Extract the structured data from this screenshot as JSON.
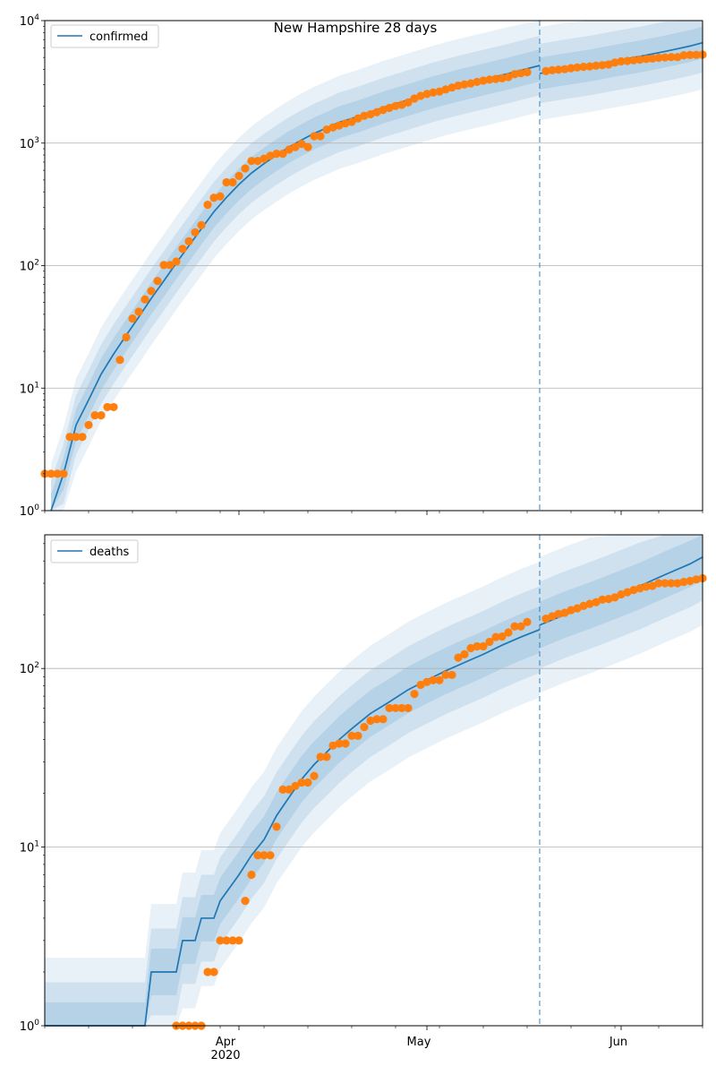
{
  "figure": {
    "title": "New Hampshire 28 days"
  },
  "colors": {
    "line": "#1f77b4",
    "dots": "#ff7f0e",
    "band": "#1f77b4",
    "grid": "#b0b0b0",
    "cutoff": "#1f77b4"
  },
  "chart_data": [
    {
      "type": "line",
      "name": "confirmed-panel",
      "yscale": "log",
      "ylim": [
        1,
        10000
      ],
      "ytick_labels": [
        "10^0",
        "10^1",
        "10^2",
        "10^3",
        "10^4"
      ],
      "grid": "horizontal",
      "legend": {
        "position": "top-left",
        "entries": [
          "confirmed"
        ]
      },
      "cutoff_date": "2020-05-19",
      "series": [
        {
          "name": "confirmed",
          "kind": "model",
          "x": [
            "2020-03-02",
            "2020-03-04",
            "2020-03-06",
            "2020-03-08",
            "2020-03-10",
            "2020-03-12",
            "2020-03-14",
            "2020-03-16",
            "2020-03-18",
            "2020-03-20",
            "2020-03-22",
            "2020-03-24",
            "2020-03-26",
            "2020-03-28",
            "2020-03-30",
            "2020-04-01",
            "2020-04-03",
            "2020-04-05",
            "2020-04-07",
            "2020-04-09",
            "2020-04-11",
            "2020-04-13",
            "2020-04-15",
            "2020-04-17",
            "2020-04-20",
            "2020-04-24",
            "2020-04-28",
            "2020-05-02",
            "2020-05-06",
            "2020-05-10",
            "2020-05-14",
            "2020-05-19",
            "2020-05-19",
            "2020-05-23",
            "2020-05-27",
            "2020-05-31",
            "2020-06-04",
            "2020-06-08",
            "2020-06-12",
            "2020-06-14"
          ],
          "values": [
            1,
            2,
            5,
            8,
            13,
            19,
            27,
            38,
            54,
            75,
            105,
            145,
            200,
            275,
            360,
            460,
            570,
            680,
            800,
            930,
            1060,
            1200,
            1330,
            1480,
            1650,
            1950,
            2250,
            2600,
            2950,
            3300,
            3700,
            4300,
            3700,
            4000,
            4300,
            4700,
            5100,
            5600,
            6200,
            6600
          ]
        },
        {
          "name": "confirmed",
          "kind": "observed",
          "x": [
            "2020-03-01",
            "2020-03-02",
            "2020-03-03",
            "2020-03-04",
            "2020-03-05",
            "2020-03-06",
            "2020-03-07",
            "2020-03-08",
            "2020-03-09",
            "2020-03-10",
            "2020-03-11",
            "2020-03-12",
            "2020-03-13",
            "2020-03-14",
            "2020-03-15",
            "2020-03-16",
            "2020-03-17",
            "2020-03-18",
            "2020-03-19",
            "2020-03-20",
            "2020-03-21",
            "2020-03-22",
            "2020-03-23",
            "2020-03-24",
            "2020-03-25",
            "2020-03-26",
            "2020-03-27",
            "2020-03-28",
            "2020-03-29",
            "2020-03-30",
            "2020-03-31",
            "2020-04-01",
            "2020-04-02",
            "2020-04-03",
            "2020-04-04",
            "2020-04-05",
            "2020-04-06",
            "2020-04-07",
            "2020-04-08",
            "2020-04-09",
            "2020-04-10",
            "2020-04-11",
            "2020-04-12",
            "2020-04-13",
            "2020-04-14",
            "2020-04-15",
            "2020-04-16",
            "2020-04-17",
            "2020-04-18",
            "2020-04-19",
            "2020-04-20",
            "2020-04-21",
            "2020-04-22",
            "2020-04-23",
            "2020-04-24",
            "2020-04-25",
            "2020-04-26",
            "2020-04-27",
            "2020-04-28",
            "2020-04-29",
            "2020-04-30",
            "2020-05-01",
            "2020-05-02",
            "2020-05-03",
            "2020-05-04",
            "2020-05-05",
            "2020-05-06",
            "2020-05-07",
            "2020-05-08",
            "2020-05-09",
            "2020-05-10",
            "2020-05-11",
            "2020-05-12",
            "2020-05-13",
            "2020-05-14",
            "2020-05-15",
            "2020-05-16",
            "2020-05-17",
            "2020-05-20",
            "2020-05-21",
            "2020-05-22",
            "2020-05-23",
            "2020-05-24",
            "2020-05-25",
            "2020-05-26",
            "2020-05-27",
            "2020-05-28",
            "2020-05-29",
            "2020-05-30",
            "2020-05-31",
            "2020-06-01",
            "2020-06-02",
            "2020-06-03",
            "2020-06-04",
            "2020-06-05",
            "2020-06-06",
            "2020-06-07",
            "2020-06-08",
            "2020-06-09",
            "2020-06-10",
            "2020-06-11",
            "2020-06-12",
            "2020-06-13",
            "2020-06-14"
          ],
          "values": [
            2,
            2,
            2,
            2,
            4,
            4,
            4,
            5,
            6,
            6,
            7,
            7,
            17,
            26,
            37,
            42,
            53,
            62,
            75,
            101,
            101,
            108,
            137,
            158,
            187,
            214,
            314,
            358,
            367,
            479,
            479,
            540,
            621,
            715,
            715,
            747,
            788,
            819,
            819,
            885,
            929,
            985,
            929,
            1139,
            1139,
            1287,
            1342,
            1392,
            1447,
            1491,
            1588,
            1670,
            1720,
            1787,
            1864,
            1938,
            2010,
            2054,
            2146,
            2310,
            2429,
            2518,
            2588,
            2636,
            2740,
            2843,
            2947,
            3011,
            3071,
            3160,
            3239,
            3299,
            3342,
            3383,
            3463,
            3652,
            3721,
            3793,
            3868,
            3935,
            3980,
            4014,
            4089,
            4145,
            4197,
            4231,
            4286,
            4331,
            4386,
            4545,
            4651,
            4685,
            4749,
            4795,
            4854,
            4904,
            4969,
            5010,
            5040,
            5040,
            5208,
            5242,
            5251,
            5278
          ]
        }
      ]
    },
    {
      "type": "line",
      "name": "deaths-panel",
      "yscale": "log",
      "ylim": [
        1,
        560
      ],
      "ytick_labels": [
        "10^0",
        "10^1",
        "10^2"
      ],
      "grid": "horizontal",
      "legend": {
        "position": "top-left",
        "entries": [
          "deaths"
        ]
      },
      "cutoff_date": "2020-05-19",
      "xtick_labels": [
        "Apr",
        "May",
        "Jun"
      ],
      "xtick_year": "2020",
      "series": [
        {
          "name": "deaths",
          "kind": "model",
          "x": [
            "2020-03-01",
            "2020-03-17",
            "2020-03-18",
            "2020-03-22",
            "2020-03-23",
            "2020-03-25",
            "2020-03-26",
            "2020-03-28",
            "2020-03-29",
            "2020-04-01",
            "2020-04-03",
            "2020-04-05",
            "2020-04-07",
            "2020-04-09",
            "2020-04-11",
            "2020-04-13",
            "2020-04-15",
            "2020-04-17",
            "2020-04-19",
            "2020-04-22",
            "2020-04-25",
            "2020-04-28",
            "2020-05-01",
            "2020-05-04",
            "2020-05-07",
            "2020-05-10",
            "2020-05-13",
            "2020-05-16",
            "2020-05-19",
            "2020-05-19",
            "2020-05-23",
            "2020-05-27",
            "2020-05-31",
            "2020-06-04",
            "2020-06-08",
            "2020-06-12",
            "2020-06-14"
          ],
          "values": [
            1,
            1,
            2,
            2,
            3,
            3,
            4,
            4,
            5,
            7,
            9,
            11,
            15,
            19,
            24,
            29,
            34,
            40,
            46,
            56,
            65,
            76,
            86,
            97,
            108,
            120,
            135,
            150,
            165,
            175,
            200,
            225,
            255,
            290,
            335,
            385,
            420
          ]
        },
        {
          "name": "deaths",
          "kind": "observed",
          "x": [
            "2020-03-22",
            "2020-03-23",
            "2020-03-24",
            "2020-03-25",
            "2020-03-26",
            "2020-03-27",
            "2020-03-28",
            "2020-03-29",
            "2020-03-30",
            "2020-03-31",
            "2020-04-01",
            "2020-04-02",
            "2020-04-03",
            "2020-04-04",
            "2020-04-05",
            "2020-04-06",
            "2020-04-07",
            "2020-04-08",
            "2020-04-09",
            "2020-04-10",
            "2020-04-11",
            "2020-04-12",
            "2020-04-13",
            "2020-04-14",
            "2020-04-15",
            "2020-04-16",
            "2020-04-17",
            "2020-04-18",
            "2020-04-19",
            "2020-04-20",
            "2020-04-21",
            "2020-04-22",
            "2020-04-23",
            "2020-04-24",
            "2020-04-25",
            "2020-04-26",
            "2020-04-27",
            "2020-04-28",
            "2020-04-29",
            "2020-04-30",
            "2020-05-01",
            "2020-05-02",
            "2020-05-03",
            "2020-05-04",
            "2020-05-05",
            "2020-05-06",
            "2020-05-07",
            "2020-05-08",
            "2020-05-09",
            "2020-05-10",
            "2020-05-11",
            "2020-05-12",
            "2020-05-13",
            "2020-05-14",
            "2020-05-15",
            "2020-05-16",
            "2020-05-17",
            "2020-05-20",
            "2020-05-21",
            "2020-05-22",
            "2020-05-23",
            "2020-05-24",
            "2020-05-25",
            "2020-05-26",
            "2020-05-27",
            "2020-05-28",
            "2020-05-29",
            "2020-05-30",
            "2020-05-31",
            "2020-06-01",
            "2020-06-02",
            "2020-06-03",
            "2020-06-04",
            "2020-06-05",
            "2020-06-06",
            "2020-06-07",
            "2020-06-08",
            "2020-06-09",
            "2020-06-10",
            "2020-06-11",
            "2020-06-12",
            "2020-06-13",
            "2020-06-14"
          ],
          "values": [
            1,
            1,
            1,
            1,
            1,
            2,
            2,
            3,
            3,
            3,
            3,
            5,
            7,
            9,
            9,
            9,
            13,
            21,
            21,
            22,
            23,
            23,
            25,
            32,
            32,
            37,
            38,
            38,
            42,
            42,
            47,
            51,
            52,
            52,
            60,
            60,
            60,
            60,
            72,
            81,
            84,
            86,
            86,
            92,
            92,
            115,
            120,
            130,
            133,
            133,
            141,
            150,
            151,
            159,
            172,
            172,
            182,
            190,
            196,
            202,
            205,
            212,
            217,
            224,
            230,
            235,
            243,
            245,
            250,
            260,
            267,
            275,
            281,
            287,
            290,
            300,
            300,
            300,
            300,
            305,
            309,
            315,
            320
          ]
        }
      ]
    }
  ]
}
